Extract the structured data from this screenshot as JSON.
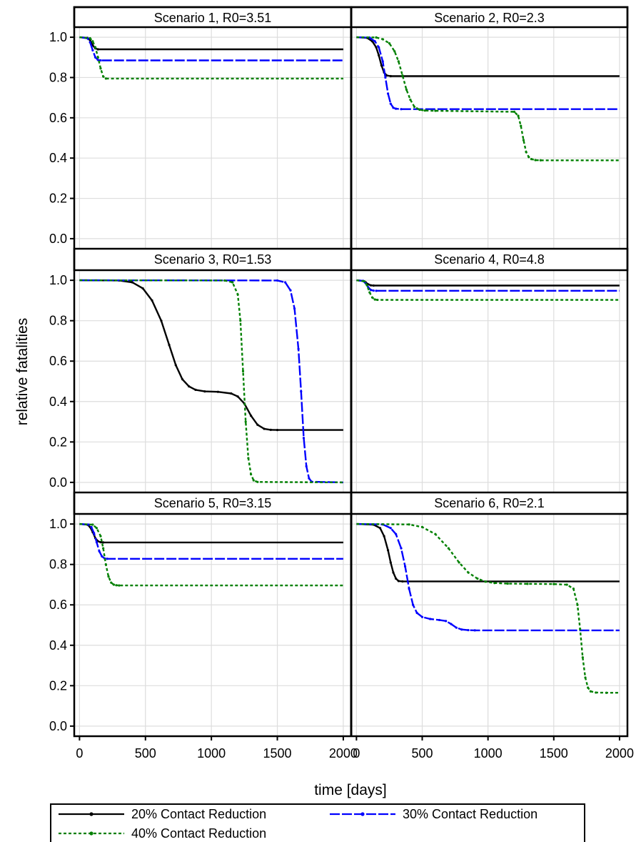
{
  "chart_data": {
    "type": "line",
    "layout": "faceted 3x2 grid with shared axes",
    "xlabel": "time [days]",
    "ylabel": "relative fatalities",
    "xlim": [
      -40,
      2060
    ],
    "ylim": [
      -0.05,
      1.05
    ],
    "xticks": [
      0,
      500,
      1000,
      1500,
      2000
    ],
    "yticks": [
      0.0,
      0.2,
      0.4,
      0.6,
      0.8,
      1.0
    ],
    "xtick_labels": [
      "0",
      "500",
      "1000",
      "1500",
      "2000"
    ],
    "ytick_labels": [
      "0.0",
      "0.2",
      "0.4",
      "0.6",
      "0.8",
      "1.0"
    ],
    "grid": true,
    "legend_position": "bottom",
    "series_styles": [
      {
        "name": "20% Contact Reduction",
        "color": "#000000",
        "dash": "solid",
        "marker": "dot"
      },
      {
        "name": "30% Contact Reduction",
        "color": "#0000ff",
        "dash": "long-dash",
        "marker": "dot"
      },
      {
        "name": "40% Contact Reduction",
        "color": "#008000",
        "dash": "short-dash",
        "marker": "dot"
      }
    ],
    "panels": [
      {
        "title": "Scenario 1, R0=3.51",
        "series": [
          {
            "name": "20% Contact Reduction",
            "x": [
              0,
              60,
              80,
              100,
              120,
              140,
              2000
            ],
            "y": [
              1.0,
              0.997,
              0.985,
              0.96,
              0.945,
              0.94,
              0.94
            ]
          },
          {
            "name": "30% Contact Reduction",
            "x": [
              0,
              60,
              80,
              100,
              120,
              140,
              160,
              2000
            ],
            "y": [
              1.0,
              0.995,
              0.975,
              0.935,
              0.9,
              0.887,
              0.885,
              0.885
            ]
          },
          {
            "name": "40% Contact Reduction",
            "x": [
              0,
              80,
              100,
              120,
              140,
              160,
              180,
              200,
              2000
            ],
            "y": [
              1.0,
              0.995,
              0.98,
              0.95,
              0.9,
              0.845,
              0.805,
              0.795,
              0.795
            ]
          }
        ]
      },
      {
        "title": "Scenario 2, R0=2.3",
        "series": [
          {
            "name": "20% Contact Reduction",
            "x": [
              0,
              80,
              120,
              150,
              170,
              190,
              210,
              230,
              260,
              2000
            ],
            "y": [
              1.0,
              0.997,
              0.98,
              0.95,
              0.91,
              0.86,
              0.825,
              0.81,
              0.807,
              0.807
            ]
          },
          {
            "name": "30% Contact Reduction",
            "x": [
              0,
              100,
              140,
              170,
              200,
              220,
              240,
              260,
              280,
              300,
              340,
              2000
            ],
            "y": [
              1.0,
              0.998,
              0.98,
              0.95,
              0.88,
              0.8,
              0.72,
              0.67,
              0.65,
              0.645,
              0.643,
              0.643
            ]
          },
          {
            "name": "40% Contact Reduction",
            "x": [
              0,
              150,
              200,
              250,
              290,
              320,
              350,
              380,
              410,
              440,
              480,
              520,
              600,
              1200,
              1230,
              1250,
              1270,
              1290,
              1310,
              1330,
              1360,
              1400,
              2000
            ],
            "y": [
              1.0,
              0.999,
              0.99,
              0.97,
              0.93,
              0.88,
              0.81,
              0.74,
              0.69,
              0.655,
              0.64,
              0.636,
              0.635,
              0.63,
              0.61,
              0.56,
              0.49,
              0.43,
              0.405,
              0.395,
              0.39,
              0.389,
              0.389
            ]
          }
        ]
      },
      {
        "title": "Scenario 3, R0=1.53",
        "series": [
          {
            "name": "20% Contact Reduction",
            "x": [
              0,
              300,
              400,
              480,
              550,
              620,
              680,
              730,
              780,
              830,
              880,
              950,
              1050,
              1150,
              1200,
              1250,
              1300,
              1350,
              1400,
              1450,
              1500,
              2000
            ],
            "y": [
              1.0,
              0.999,
              0.99,
              0.96,
              0.9,
              0.8,
              0.68,
              0.58,
              0.51,
              0.475,
              0.458,
              0.45,
              0.448,
              0.44,
              0.425,
              0.39,
              0.33,
              0.285,
              0.265,
              0.26,
              0.259,
              0.259
            ]
          },
          {
            "name": "30% Contact Reduction",
            "x": [
              0,
              1500,
              1560,
              1600,
              1630,
              1660,
              1680,
              1700,
              1720,
              1740,
              1760,
              2000
            ],
            "y": [
              1.0,
              0.999,
              0.99,
              0.95,
              0.86,
              0.66,
              0.45,
              0.22,
              0.08,
              0.02,
              0.003,
              0.0
            ]
          },
          {
            "name": "40% Contact Reduction",
            "x": [
              0,
              1100,
              1160,
              1200,
              1220,
              1240,
              1260,
              1280,
              1300,
              1320,
              1350,
              2000
            ],
            "y": [
              1.0,
              0.999,
              0.99,
              0.93,
              0.8,
              0.55,
              0.3,
              0.12,
              0.04,
              0.01,
              0.002,
              0.0
            ]
          }
        ]
      },
      {
        "title": "Scenario 4, R0=4.8",
        "series": [
          {
            "name": "20% Contact Reduction",
            "x": [
              0,
              50,
              70,
              90,
              110,
              130,
              2000
            ],
            "y": [
              1.0,
              0.997,
              0.99,
              0.98,
              0.975,
              0.974,
              0.974
            ]
          },
          {
            "name": "30% Contact Reduction",
            "x": [
              0,
              50,
              70,
              90,
              110,
              130,
              150,
              2000
            ],
            "y": [
              1.0,
              0.997,
              0.985,
              0.965,
              0.952,
              0.949,
              0.948,
              0.948
            ]
          },
          {
            "name": "40% Contact Reduction",
            "x": [
              0,
              60,
              80,
              100,
              120,
              140,
              160,
              2000
            ],
            "y": [
              1.0,
              0.995,
              0.975,
              0.94,
              0.915,
              0.905,
              0.903,
              0.903
            ]
          }
        ]
      },
      {
        "title": "Scenario 5, R0=3.15",
        "series": [
          {
            "name": "20% Contact Reduction",
            "x": [
              0,
              60,
              80,
              100,
              120,
              140,
              160,
              180,
              2000
            ],
            "y": [
              1.0,
              0.997,
              0.985,
              0.96,
              0.93,
              0.915,
              0.91,
              0.909,
              0.909
            ]
          },
          {
            "name": "30% Contact Reduction",
            "x": [
              0,
              70,
              90,
              110,
              130,
              150,
              170,
              190,
              210,
              2000
            ],
            "y": [
              1.0,
              0.997,
              0.985,
              0.955,
              0.91,
              0.865,
              0.84,
              0.83,
              0.828,
              0.828
            ]
          },
          {
            "name": "40% Contact Reduction",
            "x": [
              0,
              100,
              130,
              160,
              180,
              200,
              220,
              240,
              260,
              280,
              300,
              2000
            ],
            "y": [
              1.0,
              0.997,
              0.98,
              0.94,
              0.88,
              0.8,
              0.74,
              0.71,
              0.7,
              0.697,
              0.696,
              0.696
            ]
          }
        ]
      },
      {
        "title": "Scenario 6, R0=2.1",
        "series": [
          {
            "name": "20% Contact Reduction",
            "x": [
              0,
              130,
              180,
              210,
              240,
              260,
              280,
              300,
              320,
              350,
              2000
            ],
            "y": [
              1.0,
              0.997,
              0.98,
              0.94,
              0.87,
              0.81,
              0.76,
              0.73,
              0.718,
              0.716,
              0.716
            ]
          },
          {
            "name": "30% Contact Reduction",
            "x": [
              0,
              200,
              260,
              300,
              340,
              370,
              400,
              430,
              460,
              500,
              560,
              630,
              680,
              720,
              760,
              800,
              850,
              900,
              2000
            ],
            "y": [
              1.0,
              0.998,
              0.98,
              0.95,
              0.88,
              0.79,
              0.68,
              0.6,
              0.56,
              0.54,
              0.53,
              0.525,
              0.52,
              0.505,
              0.487,
              0.478,
              0.475,
              0.474,
              0.474
            ]
          },
          {
            "name": "40% Contact Reduction",
            "x": [
              0,
              400,
              500,
              600,
              700,
              780,
              850,
              920,
              980,
              1050,
              1150,
              1300,
              1500,
              1600,
              1650,
              1680,
              1700,
              1720,
              1740,
              1760,
              1780,
              1820,
              1900,
              2000
            ],
            "y": [
              1.0,
              0.998,
              0.985,
              0.95,
              0.88,
              0.81,
              0.76,
              0.73,
              0.715,
              0.708,
              0.705,
              0.704,
              0.703,
              0.7,
              0.68,
              0.6,
              0.48,
              0.34,
              0.24,
              0.19,
              0.172,
              0.166,
              0.165,
              0.165
            ]
          }
        ]
      }
    ]
  }
}
